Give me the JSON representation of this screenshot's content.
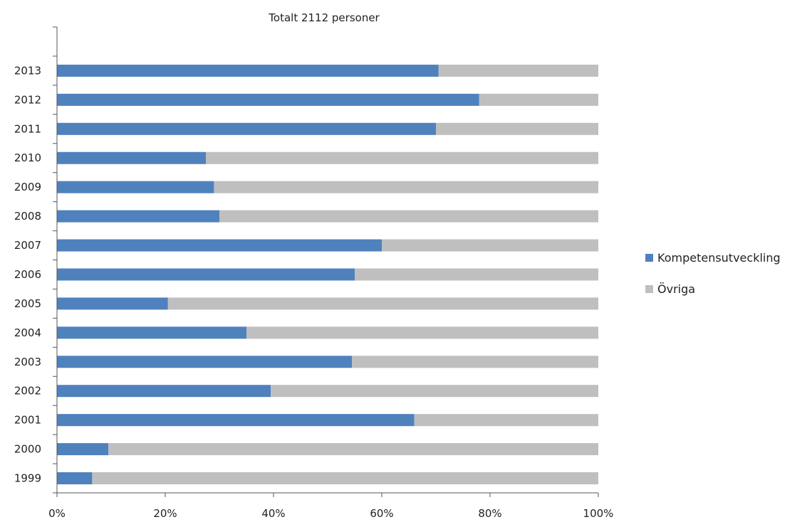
{
  "chart_data": {
    "type": "bar",
    "orientation": "horizontal",
    "stacked": "percent",
    "title": "Totalt 2112 personer",
    "xlabel": "",
    "ylabel": "",
    "xlim": [
      0,
      100
    ],
    "x_ticks": [
      "0%",
      "20%",
      "40%",
      "60%",
      "80%",
      "100%"
    ],
    "grid": false,
    "legend_position": "right",
    "categories": [
      "2013",
      "2012",
      "2011",
      "2010",
      "2009",
      "2008",
      "2007",
      "2006",
      "2005",
      "2004",
      "2003",
      "2002",
      "2001",
      "2000",
      "1999"
    ],
    "series": [
      {
        "name": "Kompetensutveckling",
        "color": "#4F81BD",
        "values": [
          70.5,
          78,
          70,
          27.5,
          29,
          30,
          60,
          55,
          20.5,
          35,
          54.5,
          39.5,
          66,
          9.5,
          6.5
        ]
      },
      {
        "name": "Övriga",
        "color": "#BFBFBF",
        "values": [
          29.5,
          22,
          30,
          72.5,
          71,
          70,
          40,
          45,
          79.5,
          65,
          45.5,
          60.5,
          34,
          90.5,
          93.5
        ]
      }
    ]
  }
}
